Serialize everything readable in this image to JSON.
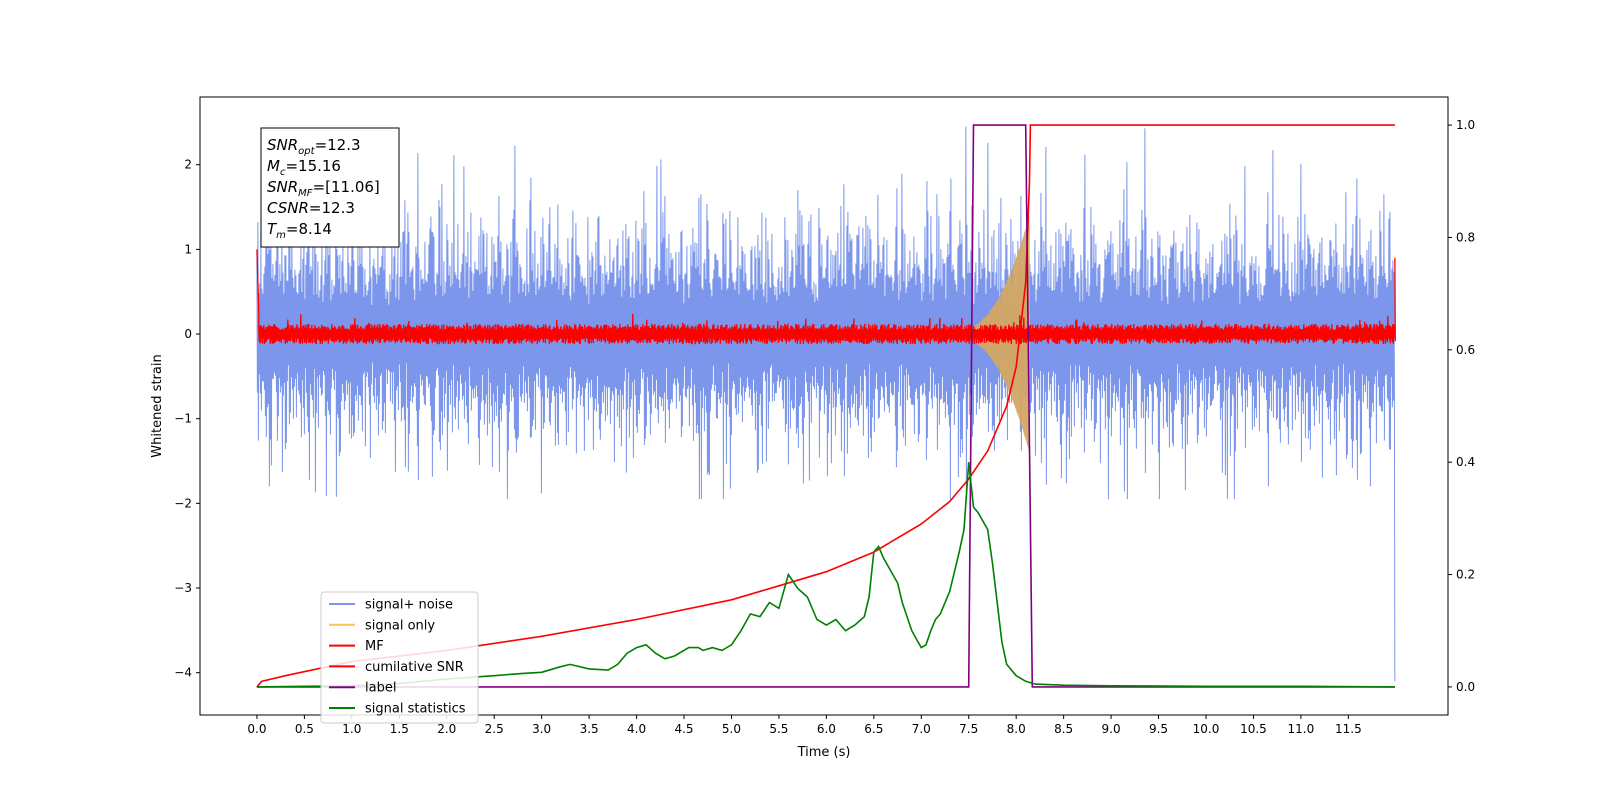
{
  "chart_data": {
    "type": "line",
    "xlabel": "Time (s)",
    "ylabel": "Whitened strain",
    "xlim": [
      -0.6,
      12.55
    ],
    "ylim": [
      -4.5,
      2.8
    ],
    "y2lim": [
      -0.05,
      1.05
    ],
    "x_ticks": [
      0.0,
      0.5,
      1.0,
      1.5,
      2.0,
      2.5,
      3.0,
      3.5,
      4.0,
      4.5,
      5.0,
      5.5,
      6.0,
      6.5,
      7.0,
      7.5,
      8.0,
      8.5,
      9.0,
      9.5,
      10.0,
      10.5,
      11.0,
      11.5
    ],
    "x_tick_labels": [
      "0.0",
      "0.5",
      "1.0",
      "1.5",
      "2.0",
      "2.5",
      "3.0",
      "3.5",
      "4.0",
      "4.5",
      "5.0",
      "5.5",
      "6.0",
      "6.5",
      "7.0",
      "7.5",
      "8.0",
      "8.5",
      "9.0",
      "9.5",
      "10.0",
      "10.5",
      "11.0",
      "11.5"
    ],
    "y_ticks": [
      2,
      1,
      0,
      -1,
      -2,
      -3,
      -4
    ],
    "y_tick_labels": [
      "2",
      "1",
      "0",
      "−1",
      "−2",
      "−3",
      "−4"
    ],
    "y2_ticks": [
      1.0,
      0.8,
      0.6,
      0.4,
      0.2,
      0.0
    ],
    "y2_tick_labels": [
      "1.0",
      "0.8",
      "0.6",
      "0.4",
      "0.2",
      "0.0"
    ],
    "legend_position": "lower-left",
    "info_box": [
      {
        "base": "SNR",
        "sub": "opt",
        "value": "=12.3"
      },
      {
        "base": "M",
        "sub": "c",
        "value": "=15.16"
      },
      {
        "base": "SNR",
        "sub": "MF",
        "value": "=[11.06]"
      },
      {
        "base": "CSNR",
        "sub": "",
        "value": "=12.3"
      },
      {
        "base": "T",
        "sub": "m",
        "value": "=8.14"
      }
    ],
    "series": [
      {
        "name": "signal+ noise",
        "color": "#7b96ea",
        "axis": "left",
        "band": [
          -0.9,
          0.9
        ],
        "start": 0.0,
        "end": 11.99
      },
      {
        "name": "signal only",
        "color": "#f5c45a",
        "axis": "left",
        "chirp_start": 7.4,
        "chirp_end": 8.14
      },
      {
        "name": "MF",
        "color": "#ff0000",
        "axis": "left",
        "band": [
          -0.12,
          0.12
        ],
        "start": 0.0,
        "end": 11.99
      },
      {
        "name": "cumilative SNR",
        "color": "#ff0000",
        "axis": "right",
        "x": [
          0.0,
          0.05,
          0.3,
          1.0,
          2.0,
          3.0,
          4.0,
          5.0,
          5.5,
          6.0,
          6.5,
          7.0,
          7.3,
          7.5,
          7.7,
          7.9,
          8.0,
          8.1,
          8.14,
          8.15,
          11.99
        ],
        "y": [
          0.0,
          0.01,
          0.02,
          0.045,
          0.065,
          0.09,
          0.12,
          0.155,
          0.18,
          0.205,
          0.24,
          0.29,
          0.33,
          0.37,
          0.42,
          0.5,
          0.57,
          0.72,
          0.9,
          1.0,
          1.0
        ]
      },
      {
        "name": "label",
        "color": "#800080",
        "axis": "right",
        "x": [
          0.0,
          7.5,
          7.55,
          8.1,
          8.17,
          11.99
        ],
        "y": [
          0.0,
          0.0,
          1.0,
          1.0,
          0.0,
          0.0
        ]
      },
      {
        "name": "signal statistics",
        "color": "#008000",
        "axis": "right",
        "x": [
          0.0,
          0.5,
          1.0,
          1.5,
          2.0,
          2.5,
          2.8,
          3.0,
          3.2,
          3.3,
          3.5,
          3.7,
          3.8,
          3.9,
          4.0,
          4.1,
          4.2,
          4.3,
          4.4,
          4.55,
          4.65,
          4.7,
          4.8,
          4.9,
          5.0,
          5.1,
          5.2,
          5.3,
          5.4,
          5.5,
          5.6,
          5.7,
          5.8,
          5.9,
          6.0,
          6.1,
          6.2,
          6.3,
          6.4,
          6.45,
          6.5,
          6.55,
          6.6,
          6.7,
          6.75,
          6.8,
          6.9,
          6.95,
          7.0,
          7.05,
          7.1,
          7.15,
          7.2,
          7.3,
          7.4,
          7.45,
          7.5,
          7.55,
          7.6,
          7.7,
          7.75,
          7.8,
          7.85,
          7.9,
          8.0,
          8.1,
          8.2,
          8.5,
          9.0,
          10.0,
          11.0,
          11.99
        ],
        "y": [
          0.0,
          0.001,
          0.002,
          0.006,
          0.014,
          0.02,
          0.024,
          0.026,
          0.036,
          0.04,
          0.032,
          0.03,
          0.04,
          0.06,
          0.07,
          0.075,
          0.06,
          0.05,
          0.055,
          0.07,
          0.07,
          0.065,
          0.07,
          0.065,
          0.075,
          0.1,
          0.13,
          0.125,
          0.15,
          0.14,
          0.2,
          0.175,
          0.16,
          0.12,
          0.11,
          0.12,
          0.1,
          0.11,
          0.125,
          0.16,
          0.24,
          0.25,
          0.23,
          0.2,
          0.185,
          0.15,
          0.1,
          0.085,
          0.07,
          0.075,
          0.1,
          0.12,
          0.13,
          0.17,
          0.24,
          0.28,
          0.4,
          0.32,
          0.31,
          0.28,
          0.22,
          0.15,
          0.08,
          0.04,
          0.02,
          0.01,
          0.005,
          0.003,
          0.002,
          0.001,
          0.001,
          0.0
        ]
      }
    ]
  }
}
